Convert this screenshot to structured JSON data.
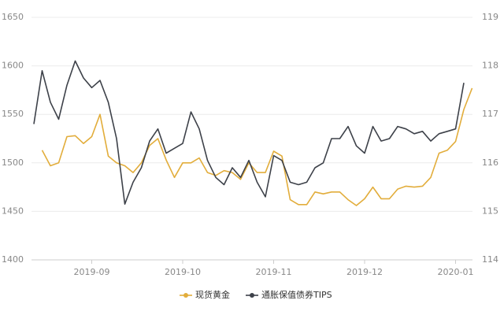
{
  "chart_data": {
    "type": "line",
    "grid": true,
    "legend": "bottom",
    "categories": [
      null,
      null,
      null,
      null,
      null,
      null,
      null,
      "2019-09",
      null,
      null,
      null,
      null,
      null,
      null,
      null,
      null,
      null,
      null,
      "2019-10",
      null,
      null,
      null,
      null,
      null,
      null,
      null,
      null,
      null,
      null,
      "2019-11",
      null,
      null,
      null,
      null,
      null,
      null,
      null,
      null,
      null,
      null,
      "2019-12",
      null,
      null,
      null,
      null,
      null,
      null,
      null,
      null,
      null,
      null,
      "2020-01",
      null,
      null
    ],
    "ylim": [
      1400,
      1650
    ],
    "yticks": [
      1400,
      1450,
      1500,
      1550,
      1600,
      1650
    ],
    "y2lim": [
      114,
      119
    ],
    "y2ticks": [
      114,
      115,
      116,
      117,
      118,
      119
    ],
    "series": [
      {
        "name": "现货黄金",
        "color": "#e2ad3b",
        "values": [
          null,
          1513,
          1497,
          1500,
          1527,
          1528,
          1520,
          1527,
          1550,
          1507,
          1500,
          1497,
          1490,
          1500,
          1518,
          1525,
          1503,
          1485,
          1500,
          1500,
          1505,
          1490,
          1487,
          1492,
          1490,
          1483,
          1500,
          1490,
          1490,
          1512,
          1507,
          1462,
          1457,
          1457,
          1470,
          1468,
          1470,
          1470,
          1462,
          1456,
          1463,
          1475,
          1463,
          1463,
          1473,
          1476,
          1475,
          1476,
          1485,
          1510,
          1513,
          1522,
          1555,
          1577
        ]
      },
      {
        "name": "通胀保值债券TIPS",
        "color": "#3d4149",
        "axis": "y2",
        "values": [
          116.8,
          117.9,
          117.25,
          116.9,
          117.6,
          118.1,
          117.75,
          117.55,
          117.7,
          117.25,
          116.5,
          115.15,
          115.6,
          115.9,
          116.45,
          116.7,
          116.2,
          116.3,
          116.4,
          117.05,
          116.7,
          116.05,
          115.7,
          115.55,
          115.9,
          115.7,
          116.05,
          115.6,
          115.3,
          116.15,
          116.05,
          115.6,
          115.55,
          115.6,
          115.9,
          116.0,
          116.5,
          116.5,
          116.75,
          116.35,
          116.2,
          116.75,
          116.45,
          116.5,
          116.75,
          116.7,
          116.6,
          116.65,
          116.45,
          116.6,
          116.65,
          116.7,
          117.65,
          null
        ]
      }
    ]
  }
}
